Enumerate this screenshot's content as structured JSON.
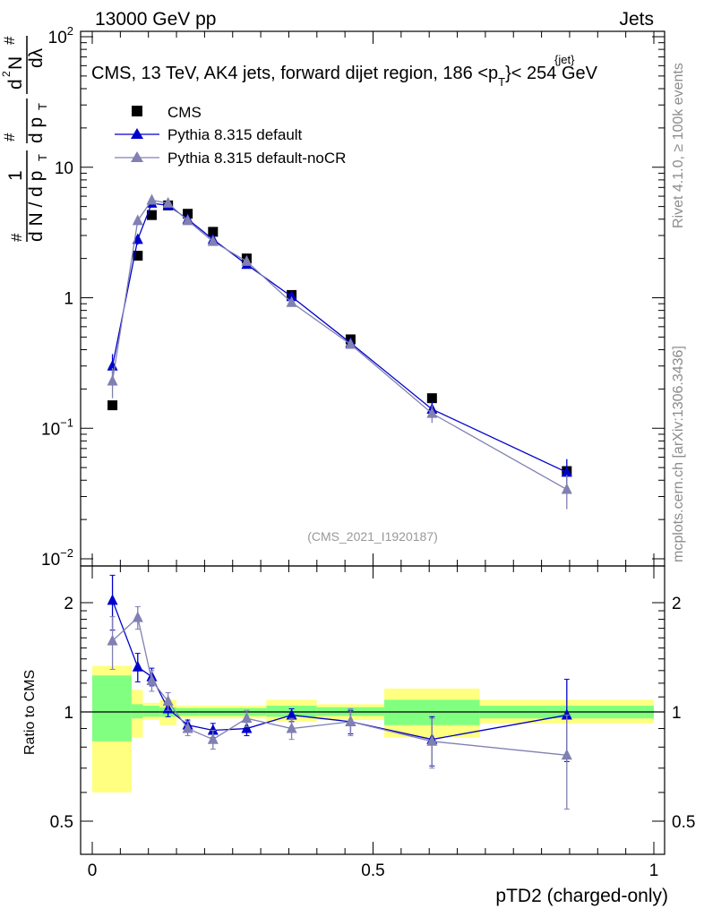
{
  "header": {
    "left": "13000 GeV pp",
    "right": "Jets"
  },
  "side_labels": {
    "rivet": "Rivet 4.1.0, ≥ 100k events",
    "mcplots": "mcplots.cern.ch [arXiv:1306.3436]"
  },
  "colors": {
    "cms": "#000000",
    "pythia_default": "#0000cc",
    "pythia_nocr": "#8080b3",
    "band_inner": "#80ff80",
    "band_outer": "#ffff80"
  },
  "chart_data": [
    {
      "id": "main",
      "type": "scatter",
      "title": "CMS, 13 TeV, AK4 jets, forward dijet region, 186 <p",
      "title_sup": "{jet}",
      "title_sub": "T",
      "title_end": "}< 254 GeV",
      "ylabel_parts": [
        "#",
        "1",
        "d N / d p",
        "T",
        "#",
        "d p",
        "T",
        "d",
        "2",
        "N",
        "dλ",
        "#"
      ],
      "watermark": "(CMS_2021_I1920187)",
      "xlim": [
        0,
        1
      ],
      "ylim": [
        0.008,
        120
      ],
      "yscale": "log",
      "yticks": [
        {
          "value": 0.01,
          "base": "10",
          "exp": "−2"
        },
        {
          "value": 0.1,
          "base": "10",
          "exp": "−1"
        },
        {
          "value": 1,
          "base": "1",
          "exp": ""
        },
        {
          "value": 10,
          "base": "10",
          "exp": ""
        },
        {
          "value": 100,
          "base": "10",
          "exp": "2"
        }
      ],
      "legend": [
        {
          "label": "CMS",
          "series": "cms"
        },
        {
          "label": "Pythia 8.315 default",
          "series": "pythia_default"
        },
        {
          "label": "Pythia 8.315 default-noCR",
          "series": "pythia_nocr"
        }
      ],
      "bins": [
        [
          0.0,
          0.07
        ],
        [
          0.07,
          0.09
        ],
        [
          0.09,
          0.12
        ],
        [
          0.12,
          0.15
        ],
        [
          0.15,
          0.19
        ],
        [
          0.19,
          0.24
        ],
        [
          0.24,
          0.31
        ],
        [
          0.31,
          0.4
        ],
        [
          0.4,
          0.52
        ],
        [
          0.52,
          0.69
        ],
        [
          0.69,
          1.0
        ]
      ],
      "series": [
        {
          "name": "CMS",
          "key": "cms",
          "marker": "square",
          "x": [
            0.036,
            0.081,
            0.106,
            0.135,
            0.17,
            0.215,
            0.275,
            0.355,
            0.46,
            0.605,
            0.845
          ],
          "y": [
            0.15,
            2.1,
            4.3,
            5.1,
            4.4,
            3.2,
            2.0,
            1.05,
            0.48,
            0.17,
            0.047
          ]
        },
        {
          "name": "Pythia 8.315 default",
          "key": "pythia_default",
          "marker": "triangle",
          "line": true,
          "x": [
            0.036,
            0.081,
            0.106,
            0.135,
            0.17,
            0.215,
            0.275,
            0.355,
            0.46,
            0.605,
            0.845
          ],
          "y": [
            0.3,
            2.8,
            5.3,
            5.1,
            4.0,
            2.8,
            1.8,
            1.02,
            0.45,
            0.14,
            0.046
          ],
          "err": [
            0.07,
            0.25,
            0.4,
            0.3,
            0.15,
            0.12,
            0.08,
            0.05,
            0.03,
            0.02,
            0.012
          ]
        },
        {
          "name": "Pythia 8.315 default-noCR",
          "key": "pythia_nocr",
          "marker": "triangle",
          "line": true,
          "x": [
            0.036,
            0.081,
            0.106,
            0.135,
            0.17,
            0.215,
            0.275,
            0.355,
            0.46,
            0.605,
            0.845
          ],
          "y": [
            0.23,
            3.9,
            5.6,
            5.3,
            3.9,
            2.7,
            1.9,
            0.92,
            0.44,
            0.13,
            0.034
          ],
          "err": [
            0.06,
            0.3,
            0.4,
            0.3,
            0.15,
            0.12,
            0.08,
            0.05,
            0.03,
            0.02,
            0.01
          ]
        }
      ]
    },
    {
      "id": "ratio",
      "type": "scatter",
      "ylabel": "Ratio to CMS",
      "xlabel": "pTD2 (charged-only)",
      "xlim": [
        0,
        1
      ],
      "ylim": [
        0.42,
        2.3
      ],
      "yscale": "log",
      "xticks": [
        {
          "value": 0,
          "label": "0"
        },
        {
          "value": 0.5,
          "label": "0.5"
        },
        {
          "value": 1,
          "label": "1"
        }
      ],
      "yticks": [
        {
          "value": 0.5,
          "label": "0.5"
        },
        {
          "value": 1,
          "label": "1"
        },
        {
          "value": 2,
          "label": "2"
        }
      ],
      "bands": [
        {
          "x": [
            0.0,
            0.07
          ],
          "inner": [
            0.83,
            1.26
          ],
          "outer": [
            0.6,
            1.34
          ]
        },
        {
          "x": [
            0.07,
            0.09
          ],
          "inner": [
            0.96,
            1.05
          ],
          "outer": [
            0.85,
            1.15
          ]
        },
        {
          "x": [
            0.09,
            0.12
          ],
          "inner": [
            0.97,
            1.04
          ],
          "outer": [
            0.95,
            1.06
          ]
        },
        {
          "x": [
            0.12,
            0.15
          ],
          "inner": [
            0.97,
            1.03
          ],
          "outer": [
            0.92,
            1.08
          ]
        },
        {
          "x": [
            0.15,
            0.19
          ],
          "inner": [
            0.975,
            1.025
          ],
          "outer": [
            0.96,
            1.04
          ]
        },
        {
          "x": [
            0.19,
            0.24
          ],
          "inner": [
            0.975,
            1.025
          ],
          "outer": [
            0.96,
            1.04
          ]
        },
        {
          "x": [
            0.24,
            0.31
          ],
          "inner": [
            0.975,
            1.025
          ],
          "outer": [
            0.96,
            1.04
          ]
        },
        {
          "x": [
            0.31,
            0.4
          ],
          "inner": [
            0.97,
            1.04
          ],
          "outer": [
            0.94,
            1.08
          ]
        },
        {
          "x": [
            0.4,
            0.52
          ],
          "inner": [
            0.975,
            1.03
          ],
          "outer": [
            0.95,
            1.05
          ]
        },
        {
          "x": [
            0.52,
            0.69
          ],
          "inner": [
            0.92,
            1.08
          ],
          "outer": [
            0.85,
            1.16
          ]
        },
        {
          "x": [
            0.69,
            1.0
          ],
          "inner": [
            0.96,
            1.04
          ],
          "outer": [
            0.93,
            1.08
          ]
        }
      ],
      "series": [
        {
          "name": "Pythia 8.315 default",
          "key": "pythia_default",
          "x": [
            0.036,
            0.081,
            0.106,
            0.135,
            0.17,
            0.215,
            0.275,
            0.355,
            0.46,
            0.605,
            0.845
          ],
          "y": [
            2.03,
            1.33,
            1.25,
            1.02,
            0.92,
            0.89,
            0.9,
            0.98,
            0.94,
            0.84,
            0.98
          ],
          "err": [
            0.35,
            0.12,
            0.07,
            0.05,
            0.03,
            0.04,
            0.04,
            0.04,
            0.07,
            0.13,
            0.25
          ]
        },
        {
          "name": "Pythia 8.315 default-noCR",
          "key": "pythia_nocr",
          "x": [
            0.036,
            0.081,
            0.106,
            0.135,
            0.17,
            0.215,
            0.275,
            0.355,
            0.46,
            0.605,
            0.845
          ],
          "y": [
            1.57,
            1.82,
            1.22,
            1.07,
            0.9,
            0.84,
            0.96,
            0.9,
            0.94,
            0.83,
            0.76
          ],
          "err": [
            0.26,
            0.13,
            0.08,
            0.06,
            0.04,
            0.05,
            0.05,
            0.06,
            0.08,
            0.13,
            0.22
          ]
        }
      ]
    }
  ]
}
